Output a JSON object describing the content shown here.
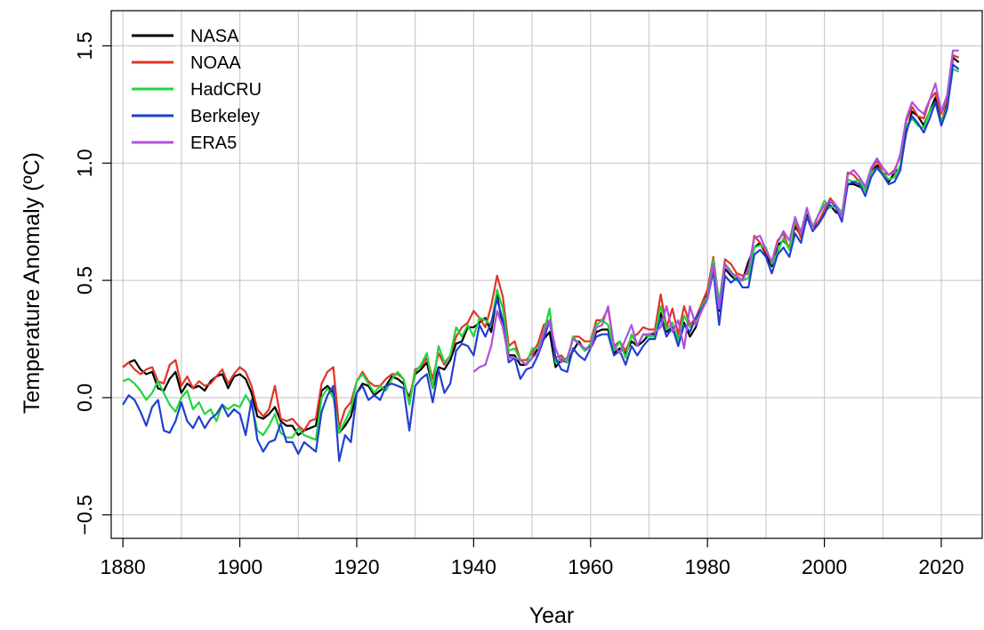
{
  "chart_data": {
    "type": "line",
    "title": "",
    "xlabel": "Year",
    "ylabel": "Temperature Anomaly (ºC)",
    "xlim": [
      1878,
      2027
    ],
    "ylim": [
      -0.6,
      1.65
    ],
    "xticks": [
      1880,
      1900,
      1920,
      1940,
      1960,
      1980,
      2000,
      2020
    ],
    "yticks": [
      -0.5,
      0.0,
      0.5,
      1.0,
      1.5
    ],
    "xtick_labels": [
      "1880",
      "1900",
      "1920",
      "1940",
      "1960",
      "1980",
      "2000",
      "2020"
    ],
    "ytick_labels": [
      "−0.5",
      "0.0",
      "0.5",
      "1.0",
      "1.5"
    ],
    "grid": true,
    "legend_position": "top-left",
    "series": [
      {
        "name": "NASA",
        "color": "#000000",
        "x_start": 1880,
        "values": [
          0.13,
          0.15,
          0.16,
          0.12,
          0.1,
          0.11,
          0.04,
          0.03,
          0.08,
          0.11,
          0.02,
          0.06,
          0.04,
          0.05,
          0.03,
          0.07,
          0.09,
          0.1,
          0.04,
          0.09,
          0.1,
          0.08,
          0.02,
          -0.08,
          -0.09,
          -0.07,
          -0.04,
          -0.1,
          -0.12,
          -0.12,
          -0.16,
          -0.14,
          -0.13,
          -0.12,
          0.03,
          0.05,
          0.02,
          -0.15,
          -0.12,
          -0.08,
          0.02,
          0.06,
          0.05,
          0.01,
          0.03,
          0.05,
          0.09,
          0.08,
          0.06,
          0.0,
          0.1,
          0.12,
          0.15,
          0.04,
          0.13,
          0.12,
          0.16,
          0.23,
          0.24,
          0.3,
          0.3,
          0.32,
          0.34,
          0.28,
          0.44,
          0.3,
          0.18,
          0.18,
          0.14,
          0.14,
          0.17,
          0.21,
          0.25,
          0.28,
          0.13,
          0.16,
          0.15,
          0.2,
          0.24,
          0.2,
          0.22,
          0.28,
          0.29,
          0.29,
          0.19,
          0.21,
          0.19,
          0.24,
          0.22,
          0.24,
          0.27,
          0.27,
          0.36,
          0.28,
          0.3,
          0.25,
          0.32,
          0.26,
          0.3,
          0.38,
          0.44,
          0.56,
          0.37,
          0.55,
          0.52,
          0.5,
          0.5,
          0.58,
          0.64,
          0.66,
          0.61,
          0.56,
          0.65,
          0.67,
          0.64,
          0.73,
          0.69,
          0.78,
          0.71,
          0.75,
          0.79,
          0.82,
          0.79,
          0.78,
          0.91,
          0.91,
          0.9,
          0.89,
          0.96,
          0.99,
          0.96,
          0.92,
          0.96,
          0.98,
          1.13,
          1.22,
          1.2,
          1.16,
          1.22,
          1.28,
          1.17,
          1.25,
          1.45,
          1.43
        ]
      },
      {
        "name": "NOAA",
        "color": "#e03526",
        "x_start": 1880,
        "values": [
          0.13,
          0.15,
          0.12,
          0.1,
          0.12,
          0.13,
          0.07,
          0.06,
          0.14,
          0.16,
          0.05,
          0.09,
          0.04,
          0.07,
          0.05,
          0.06,
          0.09,
          0.12,
          0.06,
          0.1,
          0.13,
          0.11,
          0.05,
          -0.05,
          -0.08,
          -0.05,
          0.05,
          -0.09,
          -0.1,
          -0.09,
          -0.12,
          -0.14,
          -0.1,
          -0.09,
          0.06,
          0.11,
          0.13,
          -0.13,
          -0.05,
          -0.02,
          0.07,
          0.11,
          0.07,
          0.05,
          0.05,
          0.08,
          0.1,
          0.1,
          0.08,
          -0.02,
          0.12,
          0.13,
          0.17,
          0.08,
          0.19,
          0.14,
          0.18,
          0.26,
          0.3,
          0.32,
          0.37,
          0.34,
          0.3,
          0.39,
          0.52,
          0.43,
          0.22,
          0.24,
          0.16,
          0.16,
          0.19,
          0.23,
          0.31,
          0.33,
          0.17,
          0.18,
          0.15,
          0.26,
          0.26,
          0.24,
          0.24,
          0.33,
          0.33,
          0.38,
          0.22,
          0.24,
          0.2,
          0.26,
          0.27,
          0.3,
          0.29,
          0.29,
          0.44,
          0.3,
          0.38,
          0.27,
          0.39,
          0.31,
          0.34,
          0.4,
          0.46,
          0.6,
          0.4,
          0.59,
          0.57,
          0.53,
          0.52,
          0.53,
          0.69,
          0.66,
          0.62,
          0.58,
          0.67,
          0.7,
          0.63,
          0.75,
          0.68,
          0.8,
          0.73,
          0.75,
          0.8,
          0.85,
          0.82,
          0.78,
          0.96,
          0.95,
          0.92,
          0.89,
          0.97,
          1.01,
          0.96,
          0.95,
          0.97,
          1.03,
          1.18,
          1.24,
          1.2,
          1.19,
          1.27,
          1.3,
          1.21,
          1.27,
          1.46,
          1.45
        ]
      },
      {
        "name": "HadCRU",
        "color": "#20d540",
        "x_start": 1880,
        "values": [
          0.07,
          0.08,
          0.06,
          0.03,
          -0.01,
          0.02,
          0.07,
          0.02,
          -0.03,
          -0.06,
          0.0,
          0.03,
          -0.05,
          -0.02,
          -0.07,
          -0.05,
          -0.1,
          -0.03,
          -0.05,
          -0.03,
          -0.04,
          0.01,
          -0.03,
          -0.14,
          -0.16,
          -0.12,
          -0.07,
          -0.15,
          -0.17,
          -0.17,
          -0.13,
          -0.16,
          -0.17,
          -0.18,
          0.0,
          0.04,
          0.0,
          -0.15,
          -0.1,
          -0.05,
          0.07,
          0.1,
          0.06,
          0.02,
          0.05,
          0.03,
          0.08,
          0.11,
          0.08,
          -0.03,
          0.11,
          0.14,
          0.19,
          0.04,
          0.22,
          0.15,
          0.18,
          0.3,
          0.26,
          0.31,
          0.26,
          0.34,
          0.33,
          0.31,
          0.46,
          0.38,
          0.2,
          0.21,
          0.16,
          0.14,
          0.21,
          0.21,
          0.28,
          0.38,
          0.15,
          0.17,
          0.15,
          0.26,
          0.23,
          0.2,
          0.23,
          0.31,
          0.33,
          0.31,
          0.2,
          0.24,
          0.17,
          0.27,
          0.22,
          0.27,
          0.26,
          0.26,
          0.39,
          0.29,
          0.32,
          0.24,
          0.35,
          0.3,
          0.33,
          0.39,
          0.43,
          0.59,
          0.41,
          0.57,
          0.54,
          0.5,
          0.5,
          0.51,
          0.64,
          0.65,
          0.64,
          0.57,
          0.62,
          0.68,
          0.63,
          0.76,
          0.71,
          0.8,
          0.73,
          0.78,
          0.84,
          0.81,
          0.82,
          0.79,
          0.93,
          0.92,
          0.93,
          0.88,
          0.96,
          0.98,
          0.96,
          0.93,
          0.94,
          0.99,
          1.16,
          1.19,
          1.16,
          1.15,
          1.22,
          1.26,
          1.17,
          1.24,
          1.4,
          1.39
        ]
      },
      {
        "name": "Berkeley",
        "color": "#2040d0",
        "x_start": 1880,
        "values": [
          -0.03,
          0.01,
          -0.01,
          -0.06,
          -0.12,
          -0.04,
          -0.01,
          -0.14,
          -0.15,
          -0.1,
          -0.02,
          -0.1,
          -0.13,
          -0.08,
          -0.13,
          -0.09,
          -0.07,
          -0.03,
          -0.08,
          -0.05,
          -0.07,
          -0.16,
          -0.01,
          -0.18,
          -0.23,
          -0.19,
          -0.18,
          -0.11,
          -0.19,
          -0.19,
          -0.24,
          -0.19,
          -0.21,
          -0.23,
          -0.06,
          0.01,
          0.05,
          -0.27,
          -0.16,
          -0.19,
          0.02,
          0.05,
          -0.01,
          0.01,
          -0.01,
          0.05,
          0.06,
          0.05,
          0.04,
          -0.14,
          0.05,
          0.08,
          0.1,
          -0.02,
          0.12,
          0.02,
          0.06,
          0.2,
          0.23,
          0.22,
          0.18,
          0.31,
          0.26,
          0.32,
          0.42,
          0.33,
          0.15,
          0.17,
          0.08,
          0.12,
          0.13,
          0.18,
          0.25,
          0.33,
          0.17,
          0.12,
          0.11,
          0.21,
          0.18,
          0.16,
          0.21,
          0.26,
          0.27,
          0.27,
          0.18,
          0.2,
          0.14,
          0.22,
          0.18,
          0.22,
          0.25,
          0.25,
          0.34,
          0.26,
          0.3,
          0.22,
          0.31,
          0.28,
          0.34,
          0.38,
          0.42,
          0.54,
          0.31,
          0.52,
          0.49,
          0.51,
          0.47,
          0.47,
          0.61,
          0.63,
          0.6,
          0.53,
          0.61,
          0.64,
          0.6,
          0.7,
          0.66,
          0.77,
          0.71,
          0.74,
          0.78,
          0.84,
          0.81,
          0.75,
          0.91,
          0.92,
          0.91,
          0.86,
          0.94,
          0.98,
          0.95,
          0.91,
          0.92,
          0.97,
          1.14,
          1.2,
          1.17,
          1.13,
          1.19,
          1.26,
          1.16,
          1.23,
          1.42,
          1.4
        ]
      },
      {
        "name": "ERA5",
        "color": "#b050e0",
        "x_start": 1940,
        "values": [
          0.11,
          0.13,
          0.14,
          0.22,
          0.37,
          0.3,
          0.17,
          0.17,
          0.16,
          0.14,
          0.17,
          0.19,
          0.28,
          0.33,
          0.21,
          0.15,
          0.17,
          0.25,
          0.23,
          0.21,
          0.21,
          0.3,
          0.31,
          0.39,
          0.22,
          0.19,
          0.25,
          0.31,
          0.22,
          0.27,
          0.27,
          0.28,
          0.3,
          0.39,
          0.28,
          0.33,
          0.21,
          0.39,
          0.31,
          0.37,
          0.42,
          0.57,
          0.38,
          0.57,
          0.53,
          0.52,
          0.5,
          0.55,
          0.68,
          0.69,
          0.63,
          0.58,
          0.66,
          0.71,
          0.67,
          0.77,
          0.7,
          0.81,
          0.72,
          0.78,
          0.82,
          0.84,
          0.82,
          0.77,
          0.95,
          0.97,
          0.94,
          0.9,
          0.98,
          1.02,
          0.98,
          0.95,
          0.96,
          1.04,
          1.19,
          1.26,
          1.23,
          1.21,
          1.27,
          1.34,
          1.22,
          1.29,
          1.48,
          1.48
        ]
      }
    ]
  }
}
